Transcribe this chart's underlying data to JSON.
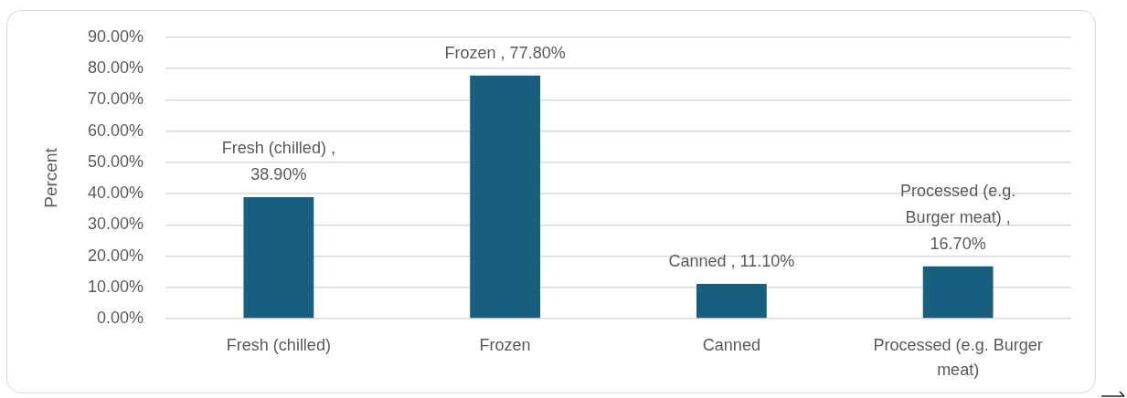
{
  "chart_data": {
    "type": "bar",
    "ylabel": "Percent",
    "categories": [
      "Fresh (chilled)",
      "Frozen",
      "Canned",
      "Processed (e.g. Burger meat)"
    ],
    "values": [
      38.9,
      77.8,
      11.1,
      16.7
    ],
    "color": "#185f7f",
    "value_labels": [
      "Fresh (chilled) , 38.90%",
      "Frozen , 77.80%",
      "Canned , 11.10%",
      "Processed (e.g. Burger meat) , 16.70%"
    ],
    "ylim": [
      0,
      90
    ],
    "yticks": [
      {
        "value": 0,
        "label": "0.00%"
      },
      {
        "value": 10,
        "label": "10.00%"
      },
      {
        "value": 20,
        "label": "20.00%"
      },
      {
        "value": 30,
        "label": "30.00%"
      },
      {
        "value": 40,
        "label": "40.00%"
      },
      {
        "value": 50,
        "label": "50.00%"
      },
      {
        "value": 60,
        "label": "60.00%"
      },
      {
        "value": 70,
        "label": "70.00%"
      },
      {
        "value": 80,
        "label": "80.00%"
      },
      {
        "value": 90,
        "label": "90.00%"
      }
    ],
    "grid": "y",
    "legend": false
  }
}
